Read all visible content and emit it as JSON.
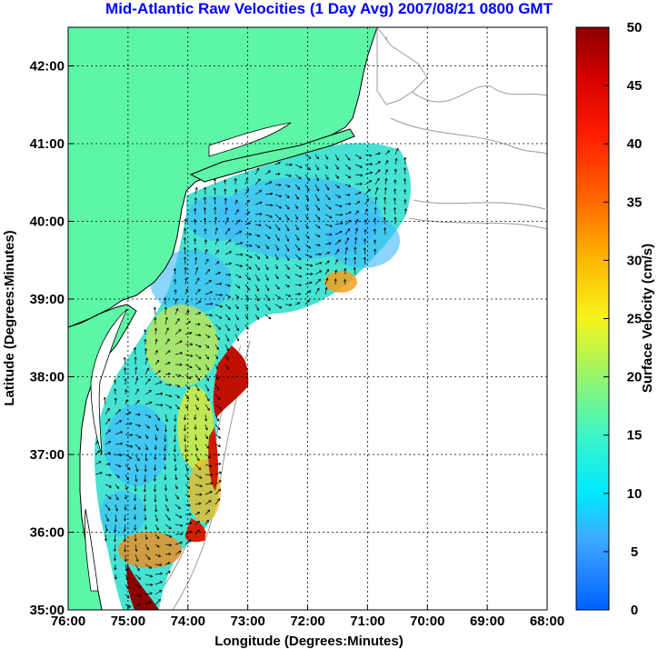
{
  "title": "Mid-Atlantic Raw Velocities (1 Day Avg) 2007/08/21 0800 GMT",
  "x_axis": {
    "label": "Longitude (Degrees:Minutes)",
    "ticks": [
      "76:00",
      "75:00",
      "74:00",
      "73:00",
      "72:00",
      "71:00",
      "70:00",
      "69:00",
      "68:00"
    ]
  },
  "y_axis": {
    "label": "Latitude (Degrees:Minutes)",
    "ticks": [
      "35:00",
      "36:00",
      "37:00",
      "38:00",
      "39:00",
      "40:00",
      "41:00",
      "42:00"
    ]
  },
  "colorbar": {
    "label": "Surface Velocity (cm/s)",
    "ticks": [
      "0",
      "5",
      "10",
      "15",
      "20",
      "25",
      "30",
      "35",
      "40",
      "45",
      "50"
    ]
  },
  "colors": {
    "land": "#5cf6a6",
    "ocean": "#ffffff",
    "grid": "#000000",
    "title": "#0000ff",
    "bathymetry": "#9a9a9a"
  }
}
